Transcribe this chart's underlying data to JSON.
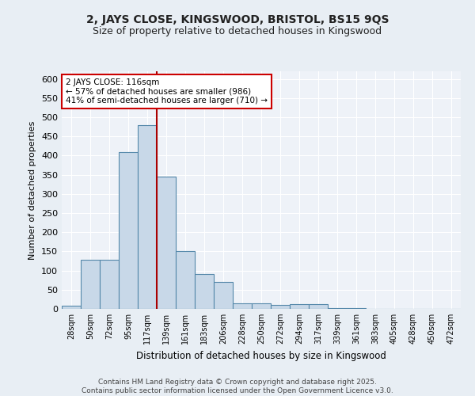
{
  "title_line1": "2, JAYS CLOSE, KINGSWOOD, BRISTOL, BS15 9QS",
  "title_line2": "Size of property relative to detached houses in Kingswood",
  "xlabel": "Distribution of detached houses by size in Kingswood",
  "ylabel": "Number of detached properties",
  "bar_labels": [
    "28sqm",
    "50sqm",
    "72sqm",
    "95sqm",
    "117sqm",
    "139sqm",
    "161sqm",
    "183sqm",
    "206sqm",
    "228sqm",
    "250sqm",
    "272sqm",
    "294sqm",
    "317sqm",
    "339sqm",
    "361sqm",
    "383sqm",
    "405sqm",
    "428sqm",
    "450sqm",
    "472sqm"
  ],
  "bar_values": [
    8,
    128,
    128,
    410,
    480,
    345,
    150,
    90,
    70,
    15,
    15,
    10,
    12,
    12,
    2,
    2,
    0,
    0,
    0,
    0,
    0
  ],
  "bar_color": "#c8d8e8",
  "bar_edgecolor": "#5588aa",
  "property_line_x": 4.5,
  "vline_color": "#aa0000",
  "annotation_text": "2 JAYS CLOSE: 116sqm\n← 57% of detached houses are smaller (986)\n41% of semi-detached houses are larger (710) →",
  "annotation_box_color": "#ffffff",
  "annotation_box_edgecolor": "#cc0000",
  "ylim": [
    0,
    620
  ],
  "yticks": [
    0,
    50,
    100,
    150,
    200,
    250,
    300,
    350,
    400,
    450,
    500,
    550,
    600
  ],
  "footer_text": "Contains HM Land Registry data © Crown copyright and database right 2025.\nContains public sector information licensed under the Open Government Licence v3.0.",
  "bg_color": "#e8eef4",
  "plot_bg_color": "#eef2f8"
}
